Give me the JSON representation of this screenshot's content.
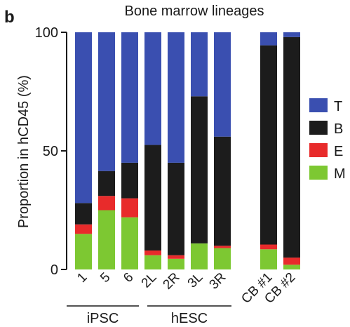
{
  "panel_label": "b",
  "chart_data": {
    "type": "bar",
    "stacked": true,
    "title": "Bone marrow lineages",
    "ylabel": "Proportion in hCD45 (%)",
    "xlabel": "",
    "ylim": [
      0,
      100
    ],
    "yticks": [
      "0",
      "50",
      "100"
    ],
    "categories": [
      "1",
      "5",
      "6",
      "2L",
      "2R",
      "3L",
      "3R",
      "CB #1",
      "CB #2"
    ],
    "groups": [
      {
        "label": "iPSC",
        "members": [
          "1",
          "5",
          "6"
        ]
      },
      {
        "label": "hESC",
        "members": [
          "2L",
          "2R",
          "3L",
          "3R"
        ]
      }
    ],
    "series": [
      {
        "name": "M",
        "color": "#7dc832",
        "values": [
          15,
          25,
          22,
          6,
          4.5,
          11,
          9,
          8.5,
          2
        ]
      },
      {
        "name": "E",
        "color": "#e82b2b",
        "values": [
          4,
          6,
          8,
          2,
          1.5,
          0,
          1,
          2,
          3
        ]
      },
      {
        "name": "B",
        "color": "#1c1c1c",
        "values": [
          9,
          10.5,
          15,
          44.5,
          39,
          62,
          46,
          84,
          93
        ]
      },
      {
        "name": "T",
        "color": "#3a4fb0",
        "values": [
          72,
          58.5,
          55,
          47.5,
          55,
          27,
          44,
          5.5,
          2
        ]
      }
    ],
    "legend": {
      "position": "right",
      "order": [
        "T",
        "B",
        "E",
        "M"
      ]
    }
  }
}
